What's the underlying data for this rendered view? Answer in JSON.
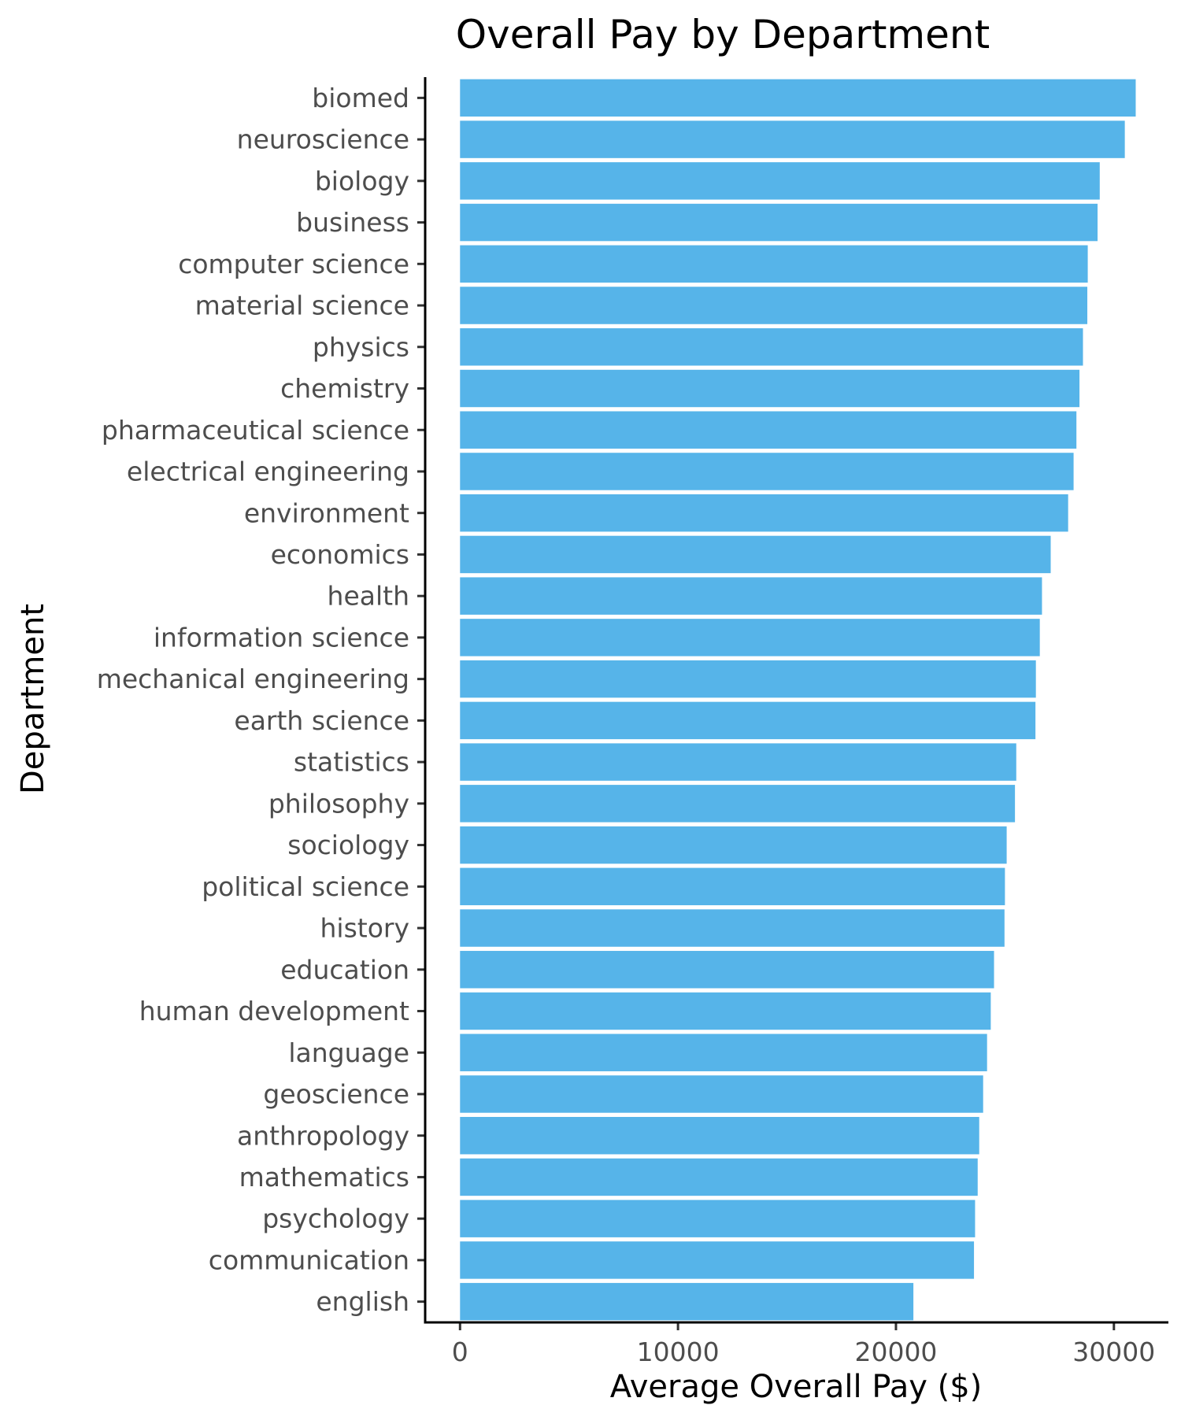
{
  "chart_data": {
    "type": "bar",
    "orientation": "horizontal",
    "title": "Overall Pay by Department",
    "xlabel": "Average Overall Pay ($)",
    "ylabel": "Department",
    "categories": [
      "biomed",
      "neuroscience",
      "biology",
      "business",
      "computer science",
      "material science",
      "physics",
      "chemistry",
      "pharmaceutical science",
      "electrical engineering",
      "environment",
      "economics",
      "health",
      "information science",
      "mechanical engineering",
      "earth science",
      "statistics",
      "philosophy",
      "sociology",
      "political science",
      "history",
      "education",
      "human development",
      "language",
      "geoscience",
      "anthropology",
      "mathematics",
      "psychology",
      "communication",
      "english"
    ],
    "values": [
      31000,
      30500,
      29350,
      29250,
      28800,
      28780,
      28580,
      28420,
      28280,
      28150,
      27900,
      27100,
      26700,
      26600,
      26420,
      26400,
      25520,
      25460,
      25080,
      25000,
      24980,
      24500,
      24350,
      24180,
      24000,
      23820,
      23750,
      23630,
      23580,
      20800
    ],
    "xticks": [
      0,
      10000,
      20000,
      30000
    ],
    "xlim": [
      -1600,
      32500
    ],
    "bar_color": "#56B4E9",
    "grid": false,
    "legend": "none"
  }
}
